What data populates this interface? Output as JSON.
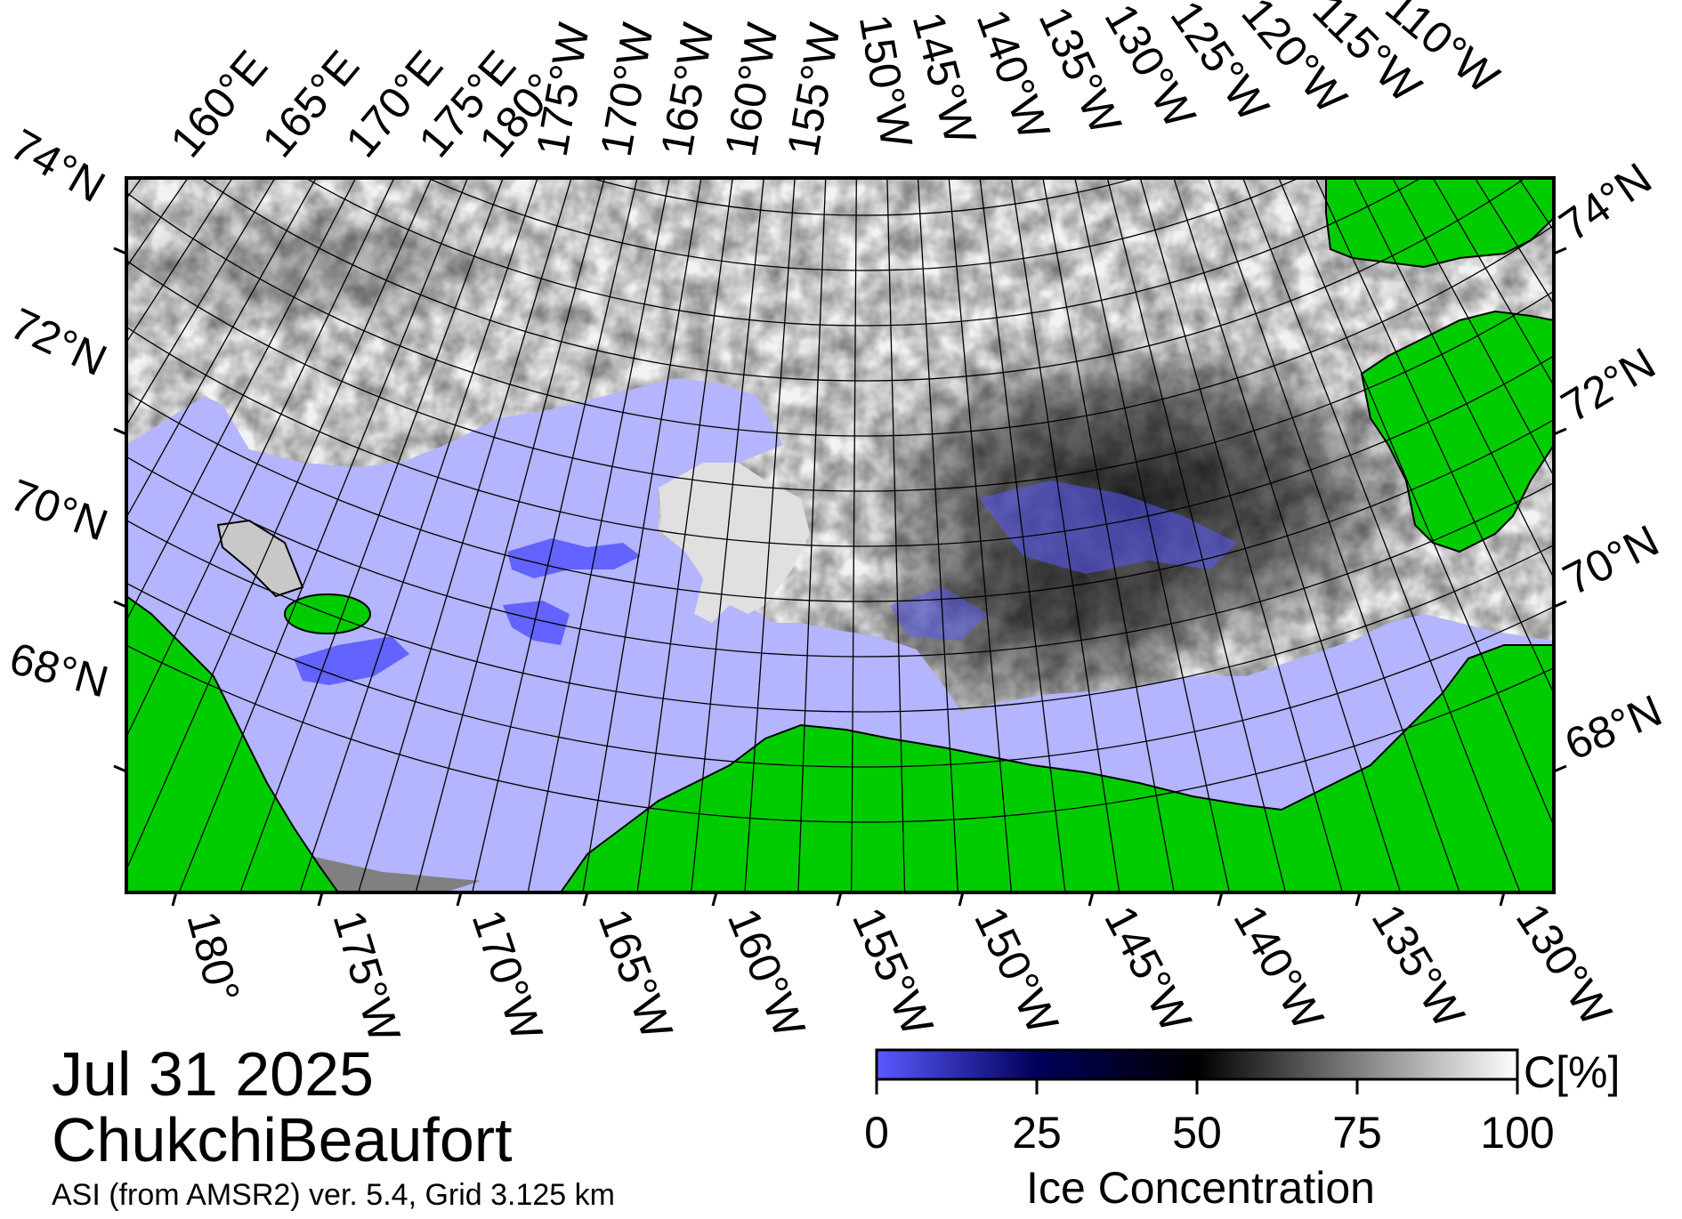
{
  "date": "Jul 31 2025",
  "region": "ChukchiBeaufort",
  "source": "ASI (from AMSR2) ver. 5.4,  Grid 3.125 km",
  "top_lon_labels": [
    "160°E",
    "165°E",
    "170°E",
    "175°E",
    "180°",
    "175°W",
    "170°W",
    "165°W",
    "160°W",
    "155°W",
    "150°W",
    "145°W",
    "140°W",
    "135°W",
    "130°W",
    "125°W",
    "120°W",
    "115°W",
    "110°W"
  ],
  "bottom_lon_labels": [
    "180°",
    "175°W",
    "170°W",
    "165°W",
    "160°W",
    "155°W",
    "150°W",
    "145°W",
    "140°W",
    "135°W",
    "130°W"
  ],
  "lat_labels": [
    "74°N",
    "72°N",
    "70°N",
    "68°N"
  ],
  "colorbar": {
    "unit": "C[%]",
    "title": "Ice Concentration",
    "ticks": [
      "0",
      "25",
      "50",
      "75",
      "100"
    ],
    "tick_values": [
      0,
      25,
      50,
      75,
      100
    ],
    "range": [
      0,
      100
    ]
  },
  "colors": {
    "land": "#00cc00",
    "open_water": "#b4b4ff",
    "missing": "#808080",
    "ice_low": "#5a5aff",
    "ice_mid": "#00005a",
    "ice_50": "#000000",
    "ice_full": "#ffffff"
  },
  "icons": [
    "map-frame",
    "colorbar"
  ]
}
